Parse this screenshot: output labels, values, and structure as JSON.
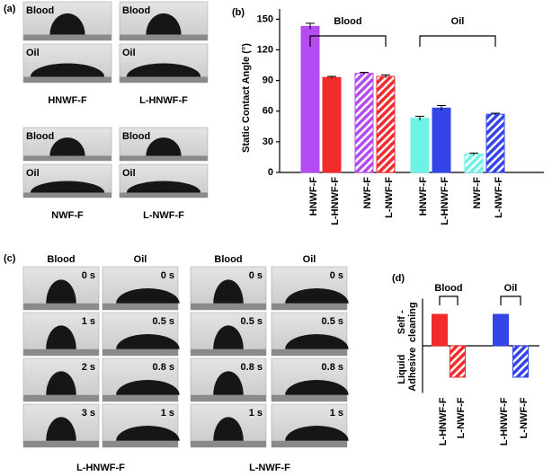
{
  "panel_a": {
    "label": "(a)",
    "samples": [
      {
        "name": "HNWF-F",
        "top": "Blood",
        "bottom": "Oil"
      },
      {
        "name": "L-HNWF-F",
        "top": "Blood",
        "bottom": "Oil"
      },
      {
        "name": "NWF-F",
        "top": "Blood",
        "bottom": "Oil"
      },
      {
        "name": "L-NWF-F",
        "top": "Blood",
        "bottom": "Oil"
      }
    ]
  },
  "panel_c": {
    "label": "(c)",
    "columns": [
      {
        "liquid": "Blood",
        "times": [
          "0 s",
          "1 s",
          "2 s",
          "3 s"
        ]
      },
      {
        "liquid": "Oil",
        "times": [
          "0 s",
          "0.5 s",
          "0.8 s",
          "1 s"
        ]
      },
      {
        "liquid": "Blood",
        "times": [
          "0 s",
          "0.5 s",
          "0.8 s",
          "1 s"
        ]
      },
      {
        "liquid": "Oil",
        "times": [
          "0 s",
          "0.5 s",
          "0.8 s",
          "1 s"
        ]
      }
    ],
    "groups": [
      "L-HNWF-F",
      "L-NWF-F"
    ]
  },
  "chart_data": [
    {
      "type": "bar",
      "panel_label": "(b)",
      "ylabel": "Static Contact Angle (°)",
      "groups": [
        "Blood",
        "Oil"
      ],
      "categories": [
        "HNWF-F",
        "L-HNWF-F",
        "NWF-F",
        "L-NWF-F",
        "HNWF-F",
        "L-HNWF-F",
        "NWF-F",
        "L-NWF-F"
      ],
      "values": [
        143,
        93,
        97,
        94,
        53,
        63,
        18,
        57
      ],
      "errors": [
        3,
        1,
        1,
        1.5,
        2,
        2.5,
        1,
        1
      ],
      "colors": [
        "#b44cf2",
        "#f22b2b",
        "#b44cf2",
        "#f22b2b",
        "#6df2e6",
        "#3344e8",
        "#6df2e6",
        "#3344e8"
      ],
      "hatched": [
        false,
        false,
        true,
        true,
        false,
        false,
        true,
        true
      ],
      "ylim": [
        0,
        160
      ],
      "yticks": [
        0,
        30,
        60,
        90,
        120,
        150
      ]
    },
    {
      "type": "bar",
      "panel_label": "(d)",
      "ylabels": [
        [
          "Self -",
          "cleaning"
        ],
        [
          "Liquid",
          "Adhesive"
        ]
      ],
      "groups": [
        "Blood",
        "Oil"
      ],
      "categories": [
        "L-HNWF-F",
        "L-NWF-F",
        "L-HNWF-F",
        "L-NWF-F"
      ],
      "values": [
        1,
        -1,
        1,
        -1
      ],
      "colors": [
        "#f22b2b",
        "#f22b2b",
        "#3344e8",
        "#3344e8"
      ],
      "hatched": [
        false,
        true,
        false,
        true
      ],
      "ylim": [
        -1.5,
        1.5
      ]
    }
  ]
}
